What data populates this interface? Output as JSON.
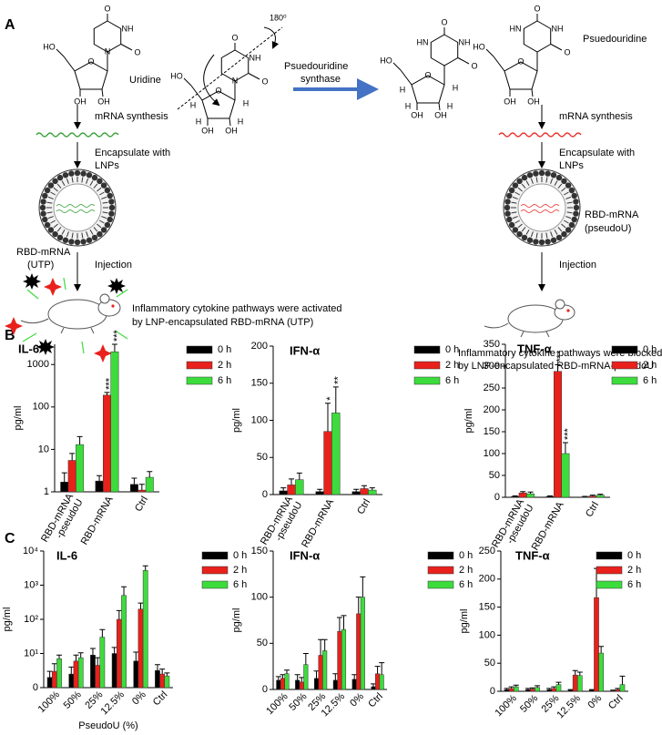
{
  "panel_labels": [
    "A",
    "B",
    "C"
  ],
  "diagram": {
    "left": {
      "molecule": "Uridine",
      "atoms": [
        "O",
        "NH",
        "O",
        "N",
        "HO",
        "O",
        "OH",
        "OH"
      ],
      "step1": "mRNA synthesis",
      "step2": [
        "Encapsulate with",
        "LNPs"
      ],
      "particle": [
        "RBD-mRNA",
        "(UTP)"
      ],
      "step3": "Injection",
      "outcome": [
        "Inflammatory cytokine pathways were activated",
        "by LNP-encapsulated RBD-mRNA (UTP)"
      ]
    },
    "center": {
      "atoms": [
        "O",
        "NH",
        "O",
        "N",
        "HO",
        "O",
        "OH",
        "OH",
        "H",
        "H",
        "H",
        "H"
      ],
      "rotation": "180⁰",
      "enzyme": [
        "Psuedouridine",
        "synthase"
      ],
      "product_atoms": [
        "O",
        "HN",
        "NH",
        "O",
        "HO",
        "O",
        "OH",
        "OH",
        "H",
        "H",
        "H",
        "H"
      ]
    },
    "right": {
      "molecule": "Psuedouridine",
      "atoms": [
        "O",
        "HN",
        "NH",
        "O",
        "HO",
        "O",
        "OH",
        "OH"
      ],
      "step1": "mRNA synthesis",
      "step2": [
        "Encapsulate with",
        "LNPs"
      ],
      "particle": [
        "RBD-mRNA",
        "(pseudoU)"
      ],
      "step3": "Injection",
      "outcome": [
        "Inflammatory cytokine pathways were blocked",
        "by LNP-encapsulated RBD-mRNA-pseudoU"
      ]
    }
  },
  "chart_data": [
    {
      "type": "bar",
      "title": "IL-6",
      "ylabel": "pg/ml",
      "log": true,
      "categories": [
        "RBD-mRNA\n-pseudoU",
        "RBD-mRNA",
        "Ctrl"
      ],
      "ylim": [
        1,
        3000
      ],
      "yticks": [
        1,
        10,
        100,
        1000
      ],
      "series": [
        {
          "name": "0 h",
          "color": "#000000",
          "values": [
            1.7,
            1.8,
            1.5
          ],
          "errors": [
            1.1,
            0.6,
            0.6
          ],
          "annotations": [
            null,
            null,
            null
          ]
        },
        {
          "name": "2 h",
          "color": "#e8211c",
          "values": [
            5.5,
            190,
            1.1
          ],
          "errors": [
            2.5,
            30,
            0.4
          ],
          "annotations": [
            null,
            "***",
            null
          ]
        },
        {
          "name": "6 h",
          "color": "#3ddc3d",
          "values": [
            13,
            2000,
            2.2
          ],
          "errors": [
            7,
            1000,
            0.8
          ],
          "annotations": [
            null,
            "***",
            null
          ]
        }
      ]
    },
    {
      "type": "bar",
      "title": "IFN-α",
      "ylabel": "pg/ml",
      "log": false,
      "categories": [
        "RBD-mRNA\n-pseudoU",
        "RBD-mRNA",
        "Ctrl"
      ],
      "ylim": [
        0,
        200
      ],
      "yticks": [
        0,
        50,
        100,
        150,
        200
      ],
      "series": [
        {
          "name": "0 h",
          "color": "#000000",
          "values": [
            5,
            4,
            4
          ],
          "errors": [
            4,
            3,
            3
          ],
          "annotations": [
            null,
            null,
            null
          ]
        },
        {
          "name": "2 h",
          "color": "#e8211c",
          "values": [
            13,
            85,
            8
          ],
          "errors": [
            8,
            38,
            4
          ],
          "annotations": [
            null,
            "*",
            null
          ]
        },
        {
          "name": "6 h",
          "color": "#3ddc3d",
          "values": [
            20,
            110,
            6
          ],
          "errors": [
            9,
            35,
            3
          ],
          "annotations": [
            null,
            "**",
            null
          ]
        }
      ]
    },
    {
      "type": "bar",
      "title": "TNF-α",
      "ylabel": "pg/ml",
      "log": false,
      "categories": [
        "RBD-mRNA\n-pseudoU",
        "RBD-mRNA",
        "Ctrl"
      ],
      "ylim": [
        0,
        350
      ],
      "yticks": [
        0,
        50,
        100,
        150,
        200,
        250,
        300,
        350
      ],
      "series": [
        {
          "name": "0 h",
          "color": "#000000",
          "values": [
            2,
            2,
            1
          ],
          "errors": [
            1,
            1,
            1
          ],
          "annotations": [
            null,
            null,
            null
          ]
        },
        {
          "name": "2 h",
          "color": "#e8211c",
          "values": [
            10,
            288,
            3
          ],
          "errors": [
            3,
            15,
            2
          ],
          "annotations": [
            null,
            "***",
            null
          ]
        },
        {
          "name": "6 h",
          "color": "#3ddc3d",
          "values": [
            8,
            100,
            5
          ],
          "errors": [
            4,
            25,
            2
          ],
          "annotations": [
            null,
            "***",
            null
          ]
        }
      ]
    },
    {
      "type": "bar",
      "title": "IL-6",
      "ylabel": "pg/ml",
      "xlabel": "PseudoU (%)",
      "log": true,
      "categories": [
        "100%",
        "50%",
        "25%",
        "12.5%",
        "0%",
        "Ctrl"
      ],
      "ylim": [
        1,
        10000
      ],
      "yticks": [
        {
          "value": 1,
          "label": "0"
        },
        {
          "value": 10,
          "label": "10¹"
        },
        {
          "value": 100,
          "label": "10²"
        },
        {
          "value": 1000,
          "label": "10³"
        },
        {
          "value": 10000,
          "label": "10⁴"
        }
      ],
      "series": [
        {
          "name": "0 h",
          "color": "#000000",
          "values": [
            2,
            2.5,
            9,
            10,
            6,
            3.2
          ],
          "errors": [
            1,
            1.5,
            5,
            5,
            5,
            1.5
          ]
        },
        {
          "name": "2 h",
          "color": "#e8211c",
          "values": [
            3,
            6,
            4.5,
            100,
            200,
            2.5
          ],
          "errors": [
            2,
            3,
            3,
            80,
            100,
            1
          ]
        },
        {
          "name": "6 h",
          "color": "#3ddc3d",
          "values": [
            7,
            7.5,
            30,
            500,
            2700,
            2.2
          ],
          "errors": [
            2,
            3,
            20,
            400,
            1000,
            0.5
          ]
        }
      ]
    },
    {
      "type": "bar",
      "title": "IFN-α",
      "ylabel": "pg/ml",
      "log": false,
      "categories": [
        "100%",
        "50%",
        "25%",
        "12.5%",
        "0%",
        "Ctrl"
      ],
      "ylim": [
        0,
        150
      ],
      "yticks": [
        0,
        50,
        100,
        150
      ],
      "series": [
        {
          "name": "0 h",
          "color": "#000000",
          "values": [
            10,
            10,
            12,
            10,
            11,
            3
          ],
          "errors": [
            4,
            6,
            8,
            7,
            5,
            3
          ]
        },
        {
          "name": "2 h",
          "color": "#e8211c",
          "values": [
            12,
            8,
            37,
            63,
            82,
            17
          ],
          "errors": [
            4,
            5,
            17,
            15,
            18,
            8
          ]
        },
        {
          "name": "6 h",
          "color": "#3ddc3d",
          "values": [
            17,
            27,
            42,
            65,
            100,
            16
          ],
          "errors": [
            4,
            12,
            12,
            15,
            22,
            13
          ]
        }
      ]
    },
    {
      "type": "bar",
      "title": "TNF-α",
      "ylabel": "pg/ml",
      "log": false,
      "categories": [
        "100%",
        "50%",
        "25%",
        "12.5%",
        "0%",
        "Ctrl"
      ],
      "ylim": [
        0,
        250
      ],
      "yticks": [
        0,
        50,
        100,
        150,
        200,
        250
      ],
      "series": [
        {
          "name": "0 h",
          "color": "#000000",
          "values": [
            3,
            3,
            3,
            2,
            2,
            1
          ],
          "errors": [
            2,
            2,
            2,
            1,
            1,
            1
          ]
        },
        {
          "name": "2 h",
          "color": "#e8211c",
          "values": [
            5,
            4,
            5,
            29,
            167,
            3
          ],
          "errors": [
            3,
            2,
            3,
            8,
            52,
            2
          ]
        },
        {
          "name": "6 h",
          "color": "#3ddc3d",
          "values": [
            8,
            7,
            12,
            28,
            68,
            12
          ],
          "errors": [
            3,
            3,
            4,
            6,
            12,
            15
          ]
        }
      ]
    }
  ]
}
